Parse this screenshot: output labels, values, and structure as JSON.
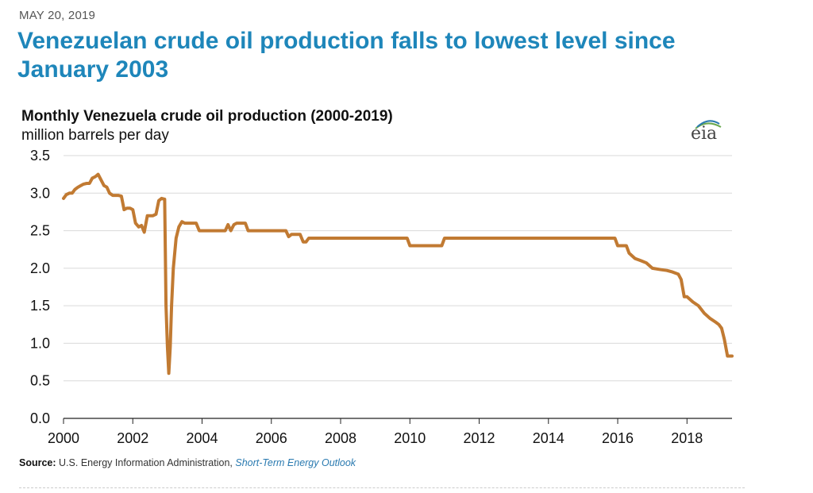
{
  "date": "MAY 20, 2019",
  "headline": "Venezuelan crude oil production falls to lowest level since January 2003",
  "colors": {
    "line": "#c17a32",
    "headline": "#1e86ba",
    "grid": "#d9d9d9"
  },
  "logo": {
    "text": "eia",
    "icon": "eia-logo-icon"
  },
  "source": {
    "label": "Source:",
    "text": "U.S. Energy Information Administration,",
    "link": "Short-Term Energy Outlook"
  },
  "chart_data": {
    "type": "line",
    "title": "Monthly Venezuela crude oil production (2000-2019)",
    "ylabel": "million barrels per day",
    "xlabel": "",
    "xlim": [
      2000,
      2019.3
    ],
    "ylim": [
      0,
      3.5
    ],
    "yticks": [
      {
        "value": 0,
        "label": "0.0"
      },
      {
        "value": 0.5,
        "label": "0.5"
      },
      {
        "value": 1,
        "label": "1.0"
      },
      {
        "value": 1.5,
        "label": "1.5"
      },
      {
        "value": 2,
        "label": "2.0"
      },
      {
        "value": 2.5,
        "label": "2.5"
      },
      {
        "value": 3,
        "label": "3.0"
      },
      {
        "value": 3.5,
        "label": "3.5"
      }
    ],
    "xticks": [
      {
        "value": 2000,
        "label": "2000"
      },
      {
        "value": 2002,
        "label": "2002"
      },
      {
        "value": 2004,
        "label": "2004"
      },
      {
        "value": 2006,
        "label": "2006"
      },
      {
        "value": 2008,
        "label": "2008"
      },
      {
        "value": 2010,
        "label": "2010"
      },
      {
        "value": 2012,
        "label": "2012"
      },
      {
        "value": 2014,
        "label": "2014"
      },
      {
        "value": 2016,
        "label": "2016"
      },
      {
        "value": 2018,
        "label": "2018"
      }
    ],
    "grid": true,
    "series": [
      {
        "name": "Venezuela crude oil production",
        "points": [
          [
            2000.0,
            2.93
          ],
          [
            2000.08,
            2.98
          ],
          [
            2000.17,
            3.0
          ],
          [
            2000.25,
            3.0
          ],
          [
            2000.33,
            3.05
          ],
          [
            2000.42,
            3.08
          ],
          [
            2000.5,
            3.1
          ],
          [
            2000.58,
            3.12
          ],
          [
            2000.67,
            3.13
          ],
          [
            2000.75,
            3.13
          ],
          [
            2000.83,
            3.2
          ],
          [
            2000.92,
            3.22
          ],
          [
            2001.0,
            3.25
          ],
          [
            2001.08,
            3.18
          ],
          [
            2001.17,
            3.1
          ],
          [
            2001.25,
            3.08
          ],
          [
            2001.33,
            3.0
          ],
          [
            2001.42,
            2.97
          ],
          [
            2001.5,
            2.97
          ],
          [
            2001.58,
            2.97
          ],
          [
            2001.67,
            2.96
          ],
          [
            2001.75,
            2.78
          ],
          [
            2001.83,
            2.8
          ],
          [
            2001.92,
            2.8
          ],
          [
            2002.0,
            2.78
          ],
          [
            2002.08,
            2.6
          ],
          [
            2002.17,
            2.55
          ],
          [
            2002.25,
            2.57
          ],
          [
            2002.33,
            2.48
          ],
          [
            2002.42,
            2.7
          ],
          [
            2002.5,
            2.7
          ],
          [
            2002.58,
            2.7
          ],
          [
            2002.67,
            2.72
          ],
          [
            2002.75,
            2.9
          ],
          [
            2002.83,
            2.93
          ],
          [
            2002.92,
            2.92
          ],
          [
            2002.96,
            1.5
          ],
          [
            2003.0,
            0.95
          ],
          [
            2003.04,
            0.6
          ],
          [
            2003.08,
            0.95
          ],
          [
            2003.12,
            1.5
          ],
          [
            2003.17,
            2.0
          ],
          [
            2003.25,
            2.4
          ],
          [
            2003.33,
            2.55
          ],
          [
            2003.42,
            2.62
          ],
          [
            2003.5,
            2.6
          ],
          [
            2003.58,
            2.6
          ],
          [
            2003.67,
            2.6
          ],
          [
            2003.75,
            2.6
          ],
          [
            2003.83,
            2.6
          ],
          [
            2003.92,
            2.5
          ],
          [
            2004.0,
            2.5
          ],
          [
            2004.5,
            2.5
          ],
          [
            2004.67,
            2.5
          ],
          [
            2004.75,
            2.58
          ],
          [
            2004.83,
            2.5
          ],
          [
            2004.92,
            2.58
          ],
          [
            2005.0,
            2.6
          ],
          [
            2005.08,
            2.6
          ],
          [
            2005.17,
            2.6
          ],
          [
            2005.25,
            2.6
          ],
          [
            2005.33,
            2.5
          ],
          [
            2005.5,
            2.5
          ],
          [
            2006.0,
            2.5
          ],
          [
            2006.42,
            2.5
          ],
          [
            2006.5,
            2.42
          ],
          [
            2006.58,
            2.45
          ],
          [
            2006.67,
            2.45
          ],
          [
            2006.83,
            2.45
          ],
          [
            2006.92,
            2.35
          ],
          [
            2007.0,
            2.35
          ],
          [
            2007.08,
            2.4
          ],
          [
            2008.0,
            2.4
          ],
          [
            2009.0,
            2.4
          ],
          [
            2009.92,
            2.4
          ],
          [
            2010.0,
            2.3
          ],
          [
            2010.5,
            2.3
          ],
          [
            2010.92,
            2.3
          ],
          [
            2011.0,
            2.4
          ],
          [
            2012.0,
            2.4
          ],
          [
            2014.0,
            2.4
          ],
          [
            2015.92,
            2.4
          ],
          [
            2016.0,
            2.3
          ],
          [
            2016.25,
            2.3
          ],
          [
            2016.33,
            2.2
          ],
          [
            2016.5,
            2.13
          ],
          [
            2016.67,
            2.1
          ],
          [
            2016.83,
            2.07
          ],
          [
            2017.0,
            2.0
          ],
          [
            2017.25,
            1.98
          ],
          [
            2017.42,
            1.97
          ],
          [
            2017.58,
            1.95
          ],
          [
            2017.75,
            1.92
          ],
          [
            2017.83,
            1.85
          ],
          [
            2017.92,
            1.62
          ],
          [
            2018.0,
            1.62
          ],
          [
            2018.17,
            1.55
          ],
          [
            2018.33,
            1.5
          ],
          [
            2018.5,
            1.4
          ],
          [
            2018.67,
            1.33
          ],
          [
            2018.83,
            1.28
          ],
          [
            2018.92,
            1.25
          ],
          [
            2019.0,
            1.2
          ],
          [
            2019.08,
            1.05
          ],
          [
            2019.17,
            0.83
          ],
          [
            2019.3,
            0.83
          ]
        ]
      }
    ]
  }
}
